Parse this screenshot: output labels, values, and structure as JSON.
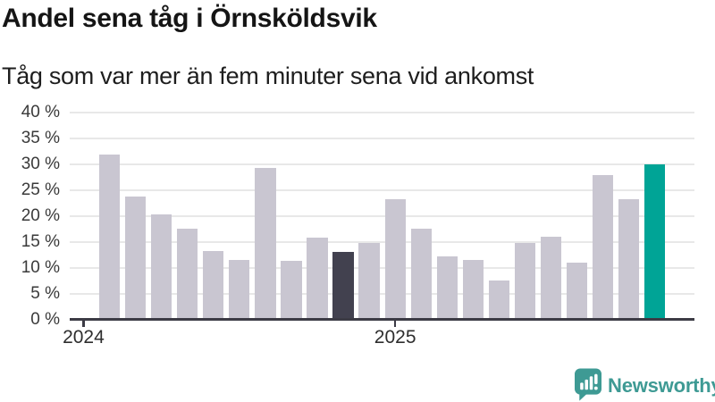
{
  "chart_data": {
    "type": "bar",
    "title": "Andel sena tåg i Örnsköldsvik",
    "subtitle": "Tåg som var mer än fem minuter sena vid ankomst",
    "unit": "percent",
    "x": [
      "2024-01",
      "2024-02",
      "2024-03",
      "2024-04",
      "2024-05",
      "2024-06",
      "2024-07",
      "2024-08",
      "2024-09",
      "2024-10",
      "2024-11",
      "2024-12",
      "2025-01",
      "2025-02",
      "2025-03",
      "2025-04",
      "2025-05",
      "2025-06",
      "2025-07",
      "2025-08",
      "2025-09",
      "2025-10",
      "2025-11"
    ],
    "values": [
      null,
      31.8,
      23.7,
      20.2,
      17.5,
      13.2,
      11.5,
      29.2,
      11.3,
      15.8,
      13.1,
      14.8,
      23.2,
      17.6,
      12.1,
      11.5,
      7.5,
      14.8,
      15.9,
      10.9,
      27.9,
      23.2,
      29.9
    ],
    "highlight_dark_month": "2024-11",
    "highlight_accent_month": "2025-11",
    "ylim": [
      0,
      40
    ],
    "yticks": [
      0,
      5,
      10,
      15,
      20,
      25,
      30,
      35,
      40
    ],
    "ytick_labels": [
      "0 %",
      "5 %",
      "10 %",
      "15 %",
      "20 %",
      "25 %",
      "30 %",
      "35 %",
      "40 %"
    ],
    "xticks": [
      {
        "label": "2024",
        "month": "2024-01"
      },
      {
        "label": "2025",
        "month": "2025-01"
      }
    ],
    "grid": "horizontal",
    "legend": "none"
  },
  "footer": {
    "brand": "Newsworthy",
    "brand_icon": "newsworthy-speech-bubble-bar-chart-icon"
  },
  "colors": {
    "bar": "#c9c6d1",
    "bar_dark": "#42414f",
    "bar_accent": "#00a496",
    "axis": "#3c3b45",
    "grid": "#e8e8e8",
    "brand": "#3e9a94",
    "title_text": "#151515"
  }
}
